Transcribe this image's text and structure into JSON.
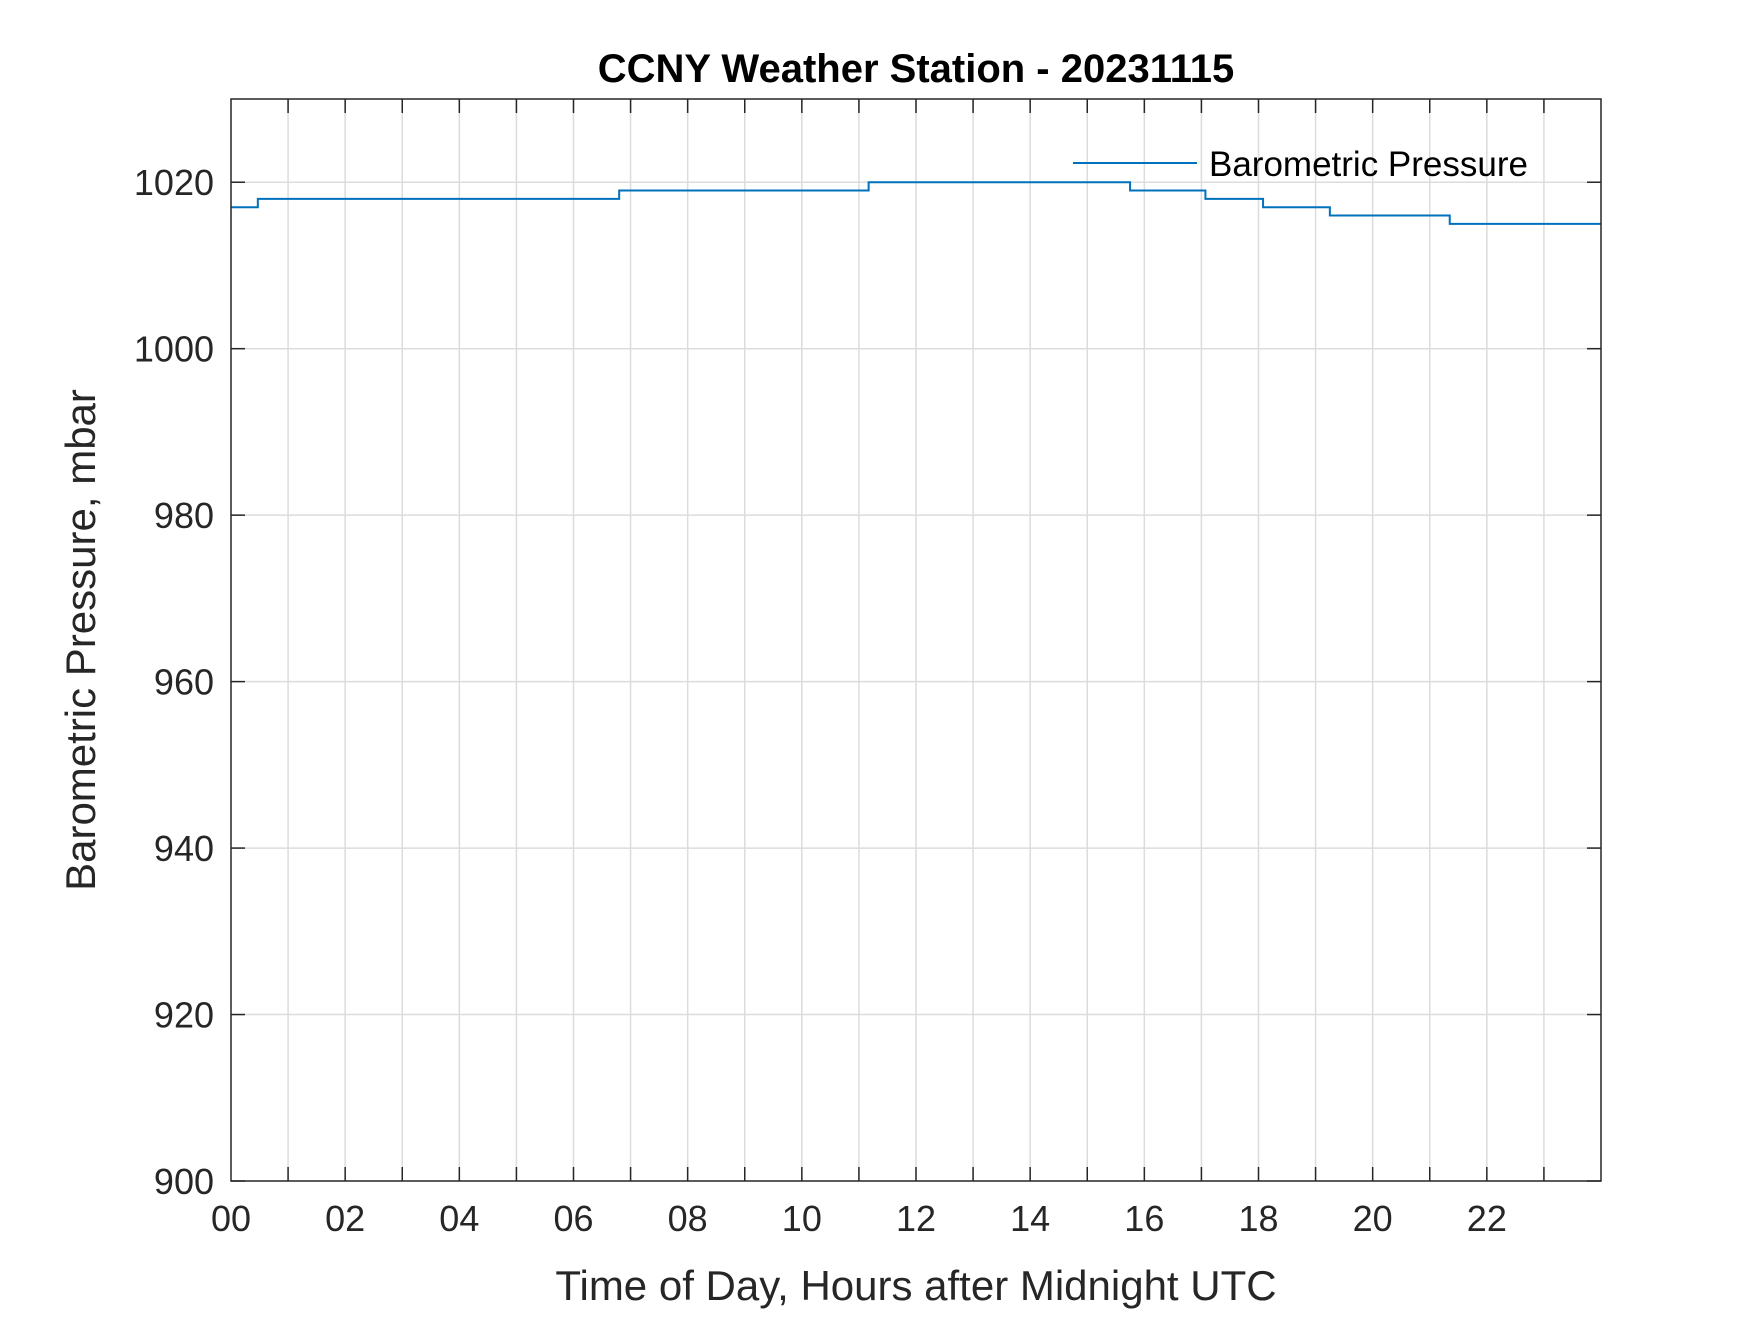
{
  "chart_data": {
    "type": "line",
    "title": "CCNY Weather Station - 20231115",
    "xlabel": "Time of Day, Hours after Midnight UTC",
    "ylabel": "Barometric Pressure, mbar",
    "xlim": [
      0,
      24
    ],
    "ylim": [
      900,
      1030
    ],
    "xticks": [
      0,
      2,
      4,
      6,
      8,
      10,
      12,
      14,
      16,
      18,
      20,
      22
    ],
    "xtick_labels": [
      "00",
      "02",
      "04",
      "06",
      "08",
      "10",
      "12",
      "14",
      "16",
      "18",
      "20",
      "22"
    ],
    "yticks": [
      900,
      920,
      940,
      960,
      980,
      1000,
      1020
    ],
    "ytick_labels": [
      "900",
      "920",
      "940",
      "960",
      "980",
      "1000",
      "1020"
    ],
    "grid": true,
    "legend_position": "top-right",
    "series": [
      {
        "name": "Barometric Pressure",
        "color": "#0072BD",
        "step": true,
        "x": [
          0,
          0.47,
          6.8,
          11.17,
          15.75,
          17.07,
          18.08,
          19.25,
          21.35,
          24
        ],
        "y": [
          1017,
          1018,
          1019,
          1020,
          1019,
          1018,
          1017,
          1016,
          1015,
          1015
        ]
      }
    ]
  }
}
